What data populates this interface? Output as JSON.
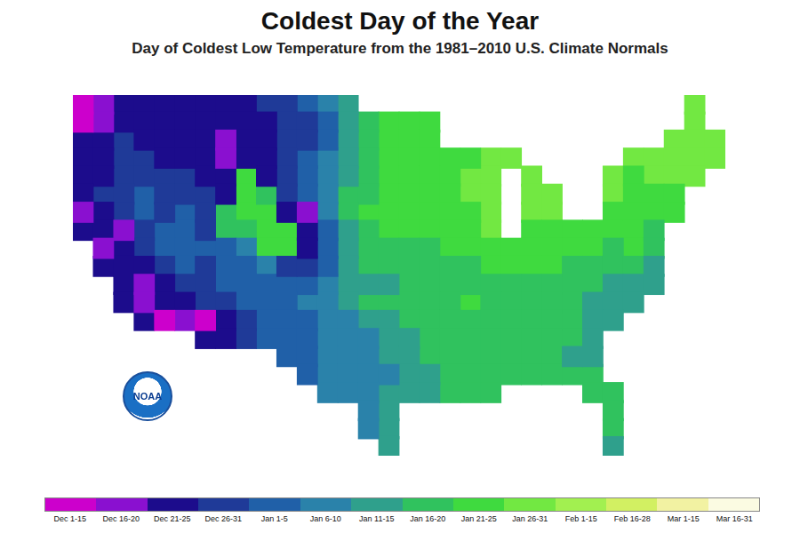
{
  "chart_data": {
    "type": "heatmap",
    "title": "Coldest Day of the Year",
    "subtitle": "Day of Coldest Low Temperature from the 1981–2010 U.S. Climate Normals",
    "logo_text": "NOAA",
    "grid": false,
    "tick_labels": false,
    "color_bar": {
      "labels": [
        "Dec 1-15",
        "Dec 16-20",
        "Dec 21-25",
        "Dec 26-31",
        "Jan 1-5",
        "Jan 6-10",
        "Jan 11-15",
        "Jan 16-20",
        "Jan 21-25",
        "Jan 26-31",
        "Feb 1-15",
        "Feb 16-28",
        "Mar 1-15",
        "Mar 16-31"
      ],
      "colors": [
        "#cc00cc",
        "#8a10d0",
        "#1c0c8c",
        "#1f3a98",
        "#2060a8",
        "#2a82aa",
        "#2fa08c",
        "#30c25e",
        "#3fda3f",
        "#72e842",
        "#a2f050",
        "#d2f062",
        "#f2f2a2",
        "#fbfbe2"
      ]
    },
    "cells": [
      [
        0,
        1,
        2,
        2,
        2,
        2,
        2,
        2,
        2,
        3,
        3,
        4,
        5,
        6,
        null,
        null,
        null,
        null,
        null,
        null,
        null,
        null,
        null,
        null,
        null,
        null,
        null,
        null,
        null,
        null,
        9,
        null
      ],
      [
        0,
        1,
        2,
        2,
        2,
        2,
        2,
        2,
        2,
        2,
        3,
        3,
        4,
        6,
        7,
        8,
        8,
        8,
        null,
        null,
        null,
        null,
        null,
        null,
        null,
        null,
        null,
        null,
        null,
        null,
        9,
        null
      ],
      [
        2,
        2,
        3,
        2,
        2,
        2,
        2,
        1,
        2,
        2,
        3,
        3,
        4,
        6,
        7,
        8,
        8,
        8,
        null,
        null,
        null,
        null,
        null,
        null,
        null,
        null,
        null,
        null,
        null,
        9,
        9,
        9
      ],
      [
        2,
        2,
        3,
        3,
        2,
        2,
        2,
        1,
        2,
        2,
        3,
        4,
        5,
        6,
        7,
        8,
        8,
        8,
        8,
        8,
        9,
        9,
        null,
        null,
        null,
        null,
        null,
        9,
        9,
        9,
        9,
        9
      ],
      [
        2,
        2,
        3,
        3,
        3,
        3,
        2,
        2,
        8,
        2,
        3,
        4,
        5,
        6,
        7,
        8,
        8,
        8,
        8,
        9,
        9,
        null,
        9,
        null,
        null,
        null,
        9,
        8,
        9,
        9,
        9,
        null
      ],
      [
        2,
        3,
        3,
        4,
        3,
        3,
        3,
        2,
        8,
        7,
        3,
        4,
        5,
        7,
        7,
        8,
        8,
        8,
        8,
        9,
        9,
        null,
        9,
        9,
        null,
        null,
        9,
        8,
        8,
        8,
        null,
        null
      ],
      [
        1,
        2,
        3,
        4,
        3,
        4,
        3,
        7,
        8,
        8,
        2,
        1,
        5,
        7,
        8,
        8,
        8,
        8,
        8,
        8,
        9,
        null,
        9,
        9,
        null,
        null,
        8,
        8,
        8,
        8,
        null,
        null
      ],
      [
        2,
        2,
        1,
        3,
        4,
        4,
        3,
        7,
        7,
        8,
        8,
        2,
        4,
        6,
        7,
        8,
        8,
        8,
        8,
        8,
        9,
        null,
        8,
        8,
        8,
        8,
        8,
        8,
        7,
        null,
        null,
        null
      ],
      [
        null,
        1,
        2,
        3,
        4,
        4,
        4,
        4,
        5,
        8,
        8,
        2,
        4,
        6,
        7,
        7,
        7,
        7,
        8,
        8,
        8,
        8,
        8,
        8,
        8,
        8,
        7,
        8,
        7,
        null,
        null,
        null
      ],
      [
        null,
        2,
        2,
        2,
        3,
        4,
        3,
        4,
        4,
        5,
        3,
        3,
        4,
        6,
        7,
        7,
        7,
        7,
        7,
        7,
        8,
        8,
        8,
        8,
        7,
        7,
        7,
        7,
        6,
        null,
        null,
        null
      ],
      [
        null,
        null,
        2,
        1,
        2,
        3,
        3,
        4,
        4,
        4,
        4,
        4,
        5,
        6,
        6,
        6,
        7,
        7,
        7,
        7,
        7,
        7,
        7,
        7,
        7,
        7,
        6,
        6,
        6,
        null,
        null,
        null
      ],
      [
        null,
        null,
        2,
        1,
        2,
        2,
        3,
        3,
        4,
        4,
        4,
        5,
        5,
        6,
        7,
        7,
        7,
        7,
        7,
        8,
        7,
        7,
        7,
        7,
        7,
        6,
        6,
        6,
        null,
        null,
        null,
        null
      ],
      [
        null,
        null,
        null,
        2,
        0,
        1,
        0,
        2,
        3,
        4,
        4,
        4,
        5,
        5,
        6,
        6,
        7,
        7,
        7,
        7,
        7,
        7,
        7,
        7,
        7,
        6,
        6,
        null,
        null,
        null,
        null,
        null
      ],
      [
        null,
        null,
        null,
        null,
        null,
        null,
        2,
        2,
        3,
        4,
        4,
        4,
        5,
        5,
        5,
        6,
        6,
        7,
        7,
        7,
        7,
        7,
        7,
        7,
        7,
        6,
        null,
        null,
        null,
        null,
        null,
        null
      ],
      [
        null,
        null,
        null,
        null,
        null,
        null,
        null,
        null,
        null,
        null,
        4,
        4,
        5,
        5,
        5,
        6,
        6,
        7,
        7,
        7,
        7,
        7,
        7,
        7,
        6,
        6,
        null,
        null,
        null,
        null,
        null,
        null
      ],
      [
        null,
        null,
        null,
        null,
        null,
        null,
        null,
        null,
        null,
        null,
        null,
        4,
        5,
        5,
        5,
        5,
        6,
        6,
        7,
        7,
        7,
        7,
        7,
        7,
        7,
        7,
        null,
        null,
        null,
        null,
        null,
        null
      ],
      [
        null,
        null,
        null,
        null,
        null,
        null,
        null,
        null,
        null,
        null,
        null,
        null,
        5,
        5,
        5,
        6,
        6,
        6,
        7,
        7,
        7,
        null,
        null,
        null,
        null,
        7,
        7,
        null,
        null,
        null,
        null,
        null
      ],
      [
        null,
        null,
        null,
        null,
        null,
        null,
        null,
        null,
        null,
        null,
        null,
        null,
        null,
        null,
        5,
        6,
        null,
        null,
        null,
        null,
        null,
        null,
        null,
        null,
        null,
        null,
        7,
        null,
        null,
        null,
        null,
        null
      ],
      [
        null,
        null,
        null,
        null,
        null,
        null,
        null,
        null,
        null,
        null,
        null,
        null,
        null,
        null,
        5,
        6,
        null,
        null,
        null,
        null,
        null,
        null,
        null,
        null,
        null,
        null,
        7,
        null,
        null,
        null,
        null,
        null
      ],
      [
        null,
        null,
        null,
        null,
        null,
        null,
        null,
        null,
        null,
        null,
        null,
        null,
        null,
        null,
        null,
        6,
        null,
        null,
        null,
        null,
        null,
        null,
        null,
        null,
        null,
        null,
        6,
        null,
        null,
        null,
        null,
        null
      ]
    ]
  }
}
